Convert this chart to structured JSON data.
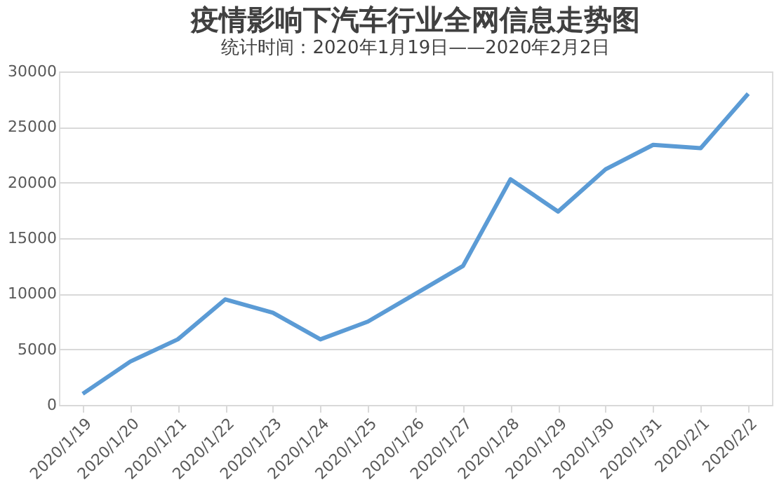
{
  "chart_data": {
    "type": "line",
    "title": "疫情影响下汽车行业全网信息走势图",
    "subtitle": "统计时间：2020年1月19日——2020年2月2日",
    "categories": [
      "2020/1/19",
      "2020/1/20",
      "2020/1/21",
      "2020/1/22",
      "2020/1/23",
      "2020/1/24",
      "2020/1/25",
      "2020/1/26",
      "2020/1/27",
      "2020/1/28",
      "2020/1/29",
      "2020/1/30",
      "2020/1/31",
      "2020/2/1",
      "2020/2/2"
    ],
    "series": [
      {
        "color": "#5b9bd5",
        "values": [
          1000,
          3900,
          5900,
          9500,
          8300,
          5900,
          7500,
          10000,
          12500,
          20300,
          17400,
          21200,
          23400,
          23100,
          28000
        ]
      }
    ],
    "ylim": [
      0,
      30000
    ],
    "yticks": [
      0,
      5000,
      10000,
      15000,
      20000,
      25000,
      30000
    ],
    "grid": "y",
    "marker": "none",
    "line_style": "solid"
  }
}
